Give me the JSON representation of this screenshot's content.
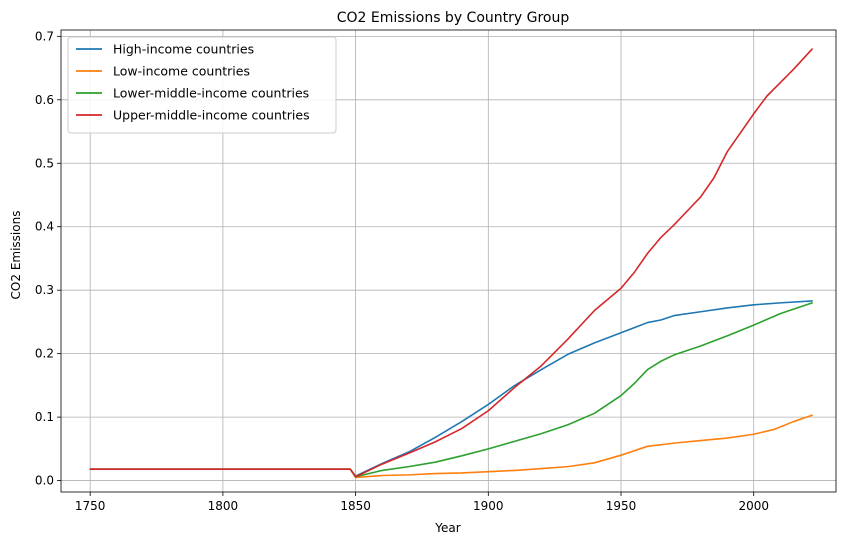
{
  "chart_data": {
    "type": "line",
    "title": "CO2 Emissions by Country Group",
    "xlabel": "Year",
    "ylabel": "CO2 Emissions",
    "xlim": [
      1739,
      2031
    ],
    "ylim": [
      -0.018,
      0.71
    ],
    "xticks": [
      1750,
      1800,
      1850,
      1900,
      1950,
      2000
    ],
    "yticks": [
      0.0,
      0.1,
      0.2,
      0.3,
      0.4,
      0.5,
      0.6,
      0.7
    ],
    "grid": true,
    "legend_position": "top-left",
    "series": [
      {
        "name": "High-income countries",
        "color": "#1f77b4",
        "points": [
          [
            1750,
            0.018
          ],
          [
            1848,
            0.018
          ],
          [
            1850,
            0.007
          ],
          [
            1860,
            0.027
          ],
          [
            1870,
            0.045
          ],
          [
            1880,
            0.068
          ],
          [
            1890,
            0.093
          ],
          [
            1900,
            0.12
          ],
          [
            1910,
            0.15
          ],
          [
            1920,
            0.175
          ],
          [
            1930,
            0.199
          ],
          [
            1940,
            0.217
          ],
          [
            1950,
            0.233
          ],
          [
            1960,
            0.249
          ],
          [
            1965,
            0.253
          ],
          [
            1970,
            0.26
          ],
          [
            1980,
            0.266
          ],
          [
            1990,
            0.272
          ],
          [
            2000,
            0.277
          ],
          [
            2010,
            0.28
          ],
          [
            2022,
            0.283
          ]
        ]
      },
      {
        "name": "Low-income countries",
        "color": "#ff7f0e",
        "points": [
          [
            1750,
            0.018
          ],
          [
            1848,
            0.018
          ],
          [
            1850,
            0.005
          ],
          [
            1860,
            0.008
          ],
          [
            1870,
            0.009
          ],
          [
            1880,
            0.011
          ],
          [
            1890,
            0.012
          ],
          [
            1900,
            0.014
          ],
          [
            1910,
            0.016
          ],
          [
            1920,
            0.019
          ],
          [
            1930,
            0.022
          ],
          [
            1940,
            0.028
          ],
          [
            1950,
            0.04
          ],
          [
            1955,
            0.047
          ],
          [
            1960,
            0.054
          ],
          [
            1970,
            0.059
          ],
          [
            1980,
            0.063
          ],
          [
            1990,
            0.067
          ],
          [
            2000,
            0.073
          ],
          [
            2008,
            0.081
          ],
          [
            2015,
            0.093
          ],
          [
            2022,
            0.103
          ]
        ]
      },
      {
        "name": "Lower-middle-income countries",
        "color": "#2ca02c",
        "points": [
          [
            1750,
            0.018
          ],
          [
            1848,
            0.018
          ],
          [
            1850,
            0.006
          ],
          [
            1860,
            0.016
          ],
          [
            1870,
            0.022
          ],
          [
            1880,
            0.029
          ],
          [
            1890,
            0.039
          ],
          [
            1900,
            0.05
          ],
          [
            1910,
            0.062
          ],
          [
            1920,
            0.074
          ],
          [
            1930,
            0.088
          ],
          [
            1940,
            0.106
          ],
          [
            1950,
            0.134
          ],
          [
            1955,
            0.153
          ],
          [
            1960,
            0.175
          ],
          [
            1965,
            0.188
          ],
          [
            1970,
            0.198
          ],
          [
            1980,
            0.212
          ],
          [
            1990,
            0.228
          ],
          [
            2000,
            0.245
          ],
          [
            2010,
            0.263
          ],
          [
            2022,
            0.28
          ]
        ]
      },
      {
        "name": "Upper-middle-income countries",
        "color": "#d62728",
        "points": [
          [
            1750,
            0.018
          ],
          [
            1848,
            0.018
          ],
          [
            1850,
            0.006
          ],
          [
            1860,
            0.026
          ],
          [
            1870,
            0.043
          ],
          [
            1880,
            0.061
          ],
          [
            1890,
            0.082
          ],
          [
            1900,
            0.11
          ],
          [
            1910,
            0.147
          ],
          [
            1920,
            0.181
          ],
          [
            1930,
            0.223
          ],
          [
            1940,
            0.268
          ],
          [
            1950,
            0.303
          ],
          [
            1955,
            0.328
          ],
          [
            1960,
            0.358
          ],
          [
            1965,
            0.383
          ],
          [
            1970,
            0.403
          ],
          [
            1975,
            0.425
          ],
          [
            1980,
            0.447
          ],
          [
            1985,
            0.477
          ],
          [
            1990,
            0.518
          ],
          [
            1995,
            0.548
          ],
          [
            2000,
            0.578
          ],
          [
            2005,
            0.606
          ],
          [
            2010,
            0.627
          ],
          [
            2015,
            0.648
          ],
          [
            2022,
            0.68
          ]
        ]
      }
    ]
  }
}
